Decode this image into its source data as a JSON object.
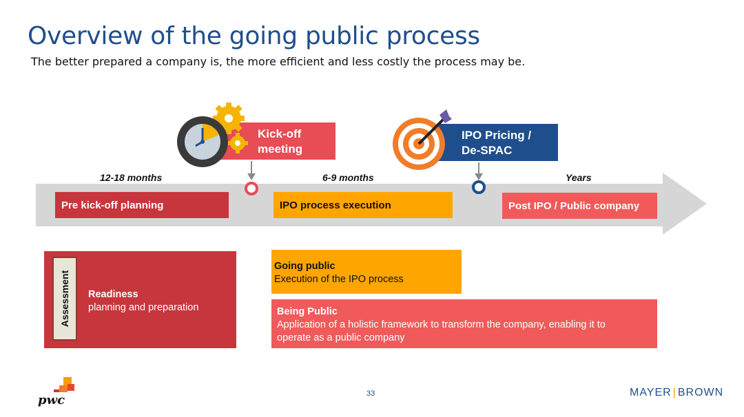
{
  "title": "Overview of the going public process",
  "subtitle": "The better prepared a company is, the more efficient and less costly the process may be.",
  "timeline": {
    "periods": [
      "12-18 months",
      "6-9 months",
      "Years"
    ],
    "phases": [
      {
        "label": "Pre kick-off planning",
        "color": "#c7363d"
      },
      {
        "label": "IPO process execution",
        "color": "#ffa500"
      },
      {
        "label": "Post IPO / Public company",
        "color": "#f05a5a"
      }
    ],
    "milestones": [
      {
        "label_line1": "Kick-off",
        "label_line2": "meeting",
        "color": "#e84c55",
        "icon": "clock-gears-icon"
      },
      {
        "label_line1": "IPO Pricing /",
        "label_line2": "De-SPAC",
        "color": "#1f4e8c",
        "icon": "target-dart-icon"
      }
    ]
  },
  "assessment": {
    "vertical_label": "Assessment",
    "heading": "Readiness",
    "body": "planning and preparation",
    "color": "#c7363d"
  },
  "going_public": {
    "heading": "Going public",
    "body": "Execution of the IPO process",
    "color": "#ffa500"
  },
  "being_public": {
    "heading": "Being Public",
    "body_line1": "Application of a holistic framework to transform the company, enabling it to",
    "body_line2": "operate as a public company",
    "color": "#f05a5a"
  },
  "footer": {
    "page_number": "33",
    "logo_left": "pwc",
    "logo_right_part1": "MAYER",
    "logo_right_part2": "BROWN"
  }
}
